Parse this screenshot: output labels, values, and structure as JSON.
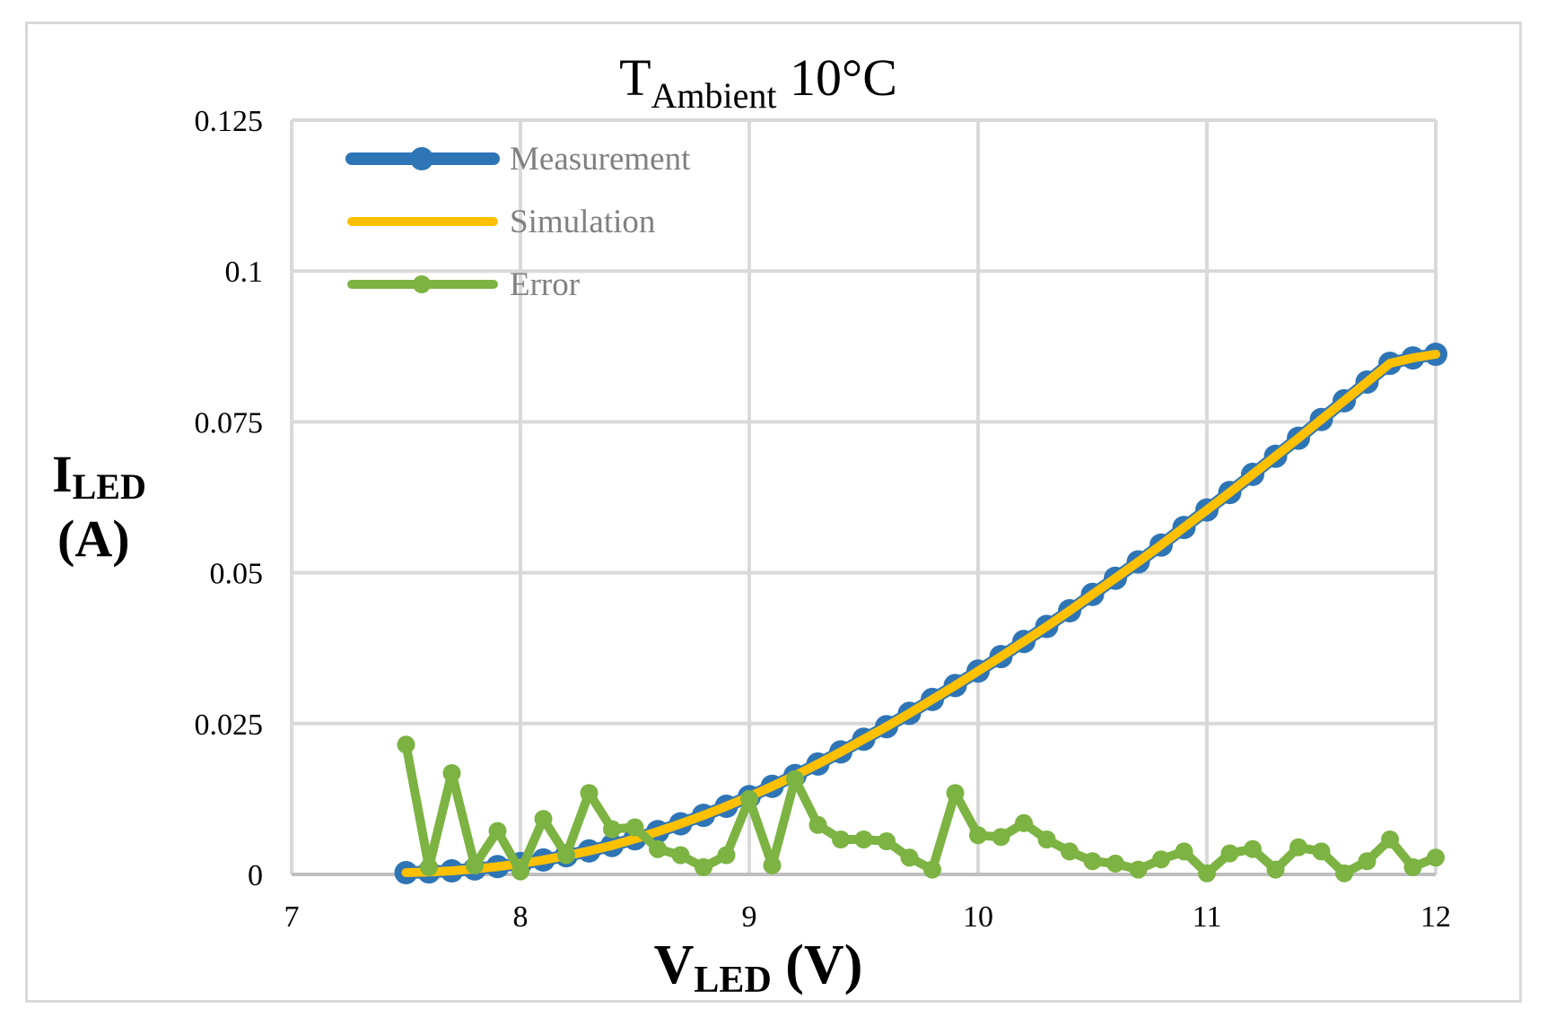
{
  "chart_data": {
    "type": "line",
    "title": {
      "main": "T",
      "subscript": "Ambient",
      "suffix": " 10°C"
    },
    "xlabel": {
      "main": "V",
      "subscript": "LED",
      "suffix": " (V)"
    },
    "ylabel": {
      "line1_main": "I",
      "line1_subscript": "LED",
      "line2": "(A)"
    },
    "xlim": [
      7,
      12
    ],
    "ylim": [
      0,
      0.125
    ],
    "x_ticks": [
      7,
      8,
      9,
      10,
      11,
      12
    ],
    "y_ticks": [
      0,
      0.025,
      0.05,
      0.075,
      0.1,
      0.125
    ],
    "x_tick_labels": [
      "7",
      "8",
      "9",
      "10",
      "11",
      "12"
    ],
    "y_tick_labels": [
      "0",
      "0.025",
      "0.05",
      "0.075",
      "0.1",
      "0.125"
    ],
    "grid": true,
    "legend_position": "top-left",
    "x": [
      7.5,
      7.6,
      7.7,
      7.8,
      7.9,
      8.0,
      8.1,
      8.2,
      8.3,
      8.4,
      8.5,
      8.6,
      8.7,
      8.8,
      8.9,
      9.0,
      9.1,
      9.2,
      9.3,
      9.4,
      9.5,
      9.6,
      9.7,
      9.8,
      9.9,
      10.0,
      10.1,
      10.2,
      10.3,
      10.4,
      10.5,
      10.6,
      10.7,
      10.8,
      10.9,
      11.0,
      11.1,
      11.2,
      11.3,
      11.4,
      11.5,
      11.6,
      11.7,
      11.8,
      11.9,
      12.0
    ],
    "series": [
      {
        "name": "Measurement",
        "color": "#2e75b6",
        "marker": "large-circle",
        "values": [
          0.0003,
          0.0004,
          0.0006,
          0.0009,
          0.0013,
          0.0018,
          0.0024,
          0.0031,
          0.0039,
          0.0048,
          0.0059,
          0.0071,
          0.0084,
          0.0098,
          0.0113,
          0.0129,
          0.0146,
          0.0164,
          0.0183,
          0.0203,
          0.0224,
          0.0245,
          0.0267,
          0.029,
          0.0313,
          0.0337,
          0.0361,
          0.0386,
          0.0411,
          0.0437,
          0.0464,
          0.0491,
          0.0518,
          0.0546,
          0.0575,
          0.0604,
          0.0633,
          0.0663,
          0.0693,
          0.0723,
          0.0754,
          0.0785,
          0.0816,
          0.0847,
          0.0856,
          0.0862
        ]
      },
      {
        "name": "Simulation",
        "color": "#ffc000",
        "marker": "small-dot",
        "values": [
          0.0003,
          0.0004,
          0.0006,
          0.0009,
          0.0013,
          0.0018,
          0.0024,
          0.0031,
          0.0039,
          0.0048,
          0.0059,
          0.0071,
          0.0084,
          0.0098,
          0.0113,
          0.0129,
          0.0146,
          0.0164,
          0.0183,
          0.0203,
          0.0224,
          0.0245,
          0.0267,
          0.029,
          0.0313,
          0.0337,
          0.0361,
          0.0386,
          0.0411,
          0.0437,
          0.0464,
          0.0491,
          0.0518,
          0.0546,
          0.0575,
          0.0604,
          0.0633,
          0.0663,
          0.0693,
          0.0723,
          0.0754,
          0.0785,
          0.0816,
          0.0847,
          0.0856,
          0.0862
        ]
      },
      {
        "name": "Error",
        "color": "#7cb342",
        "marker": "medium-circle",
        "values": [
          0.0215,
          0.0012,
          0.0168,
          0.0015,
          0.0072,
          0.0005,
          0.0092,
          0.0032,
          0.0135,
          0.0075,
          0.0078,
          0.0042,
          0.0032,
          0.0012,
          0.0032,
          0.0125,
          0.0015,
          0.0158,
          0.0082,
          0.0058,
          0.0058,
          0.0055,
          0.0028,
          0.0008,
          0.0135,
          0.0065,
          0.0062,
          0.0085,
          0.0058,
          0.0038,
          0.0022,
          0.0018,
          0.0008,
          0.0025,
          0.0038,
          0.0002,
          0.0035,
          0.0042,
          0.0008,
          0.0045,
          0.0038,
          0.0002,
          0.0022,
          0.0058,
          0.0012,
          0.0028
        ]
      }
    ]
  }
}
